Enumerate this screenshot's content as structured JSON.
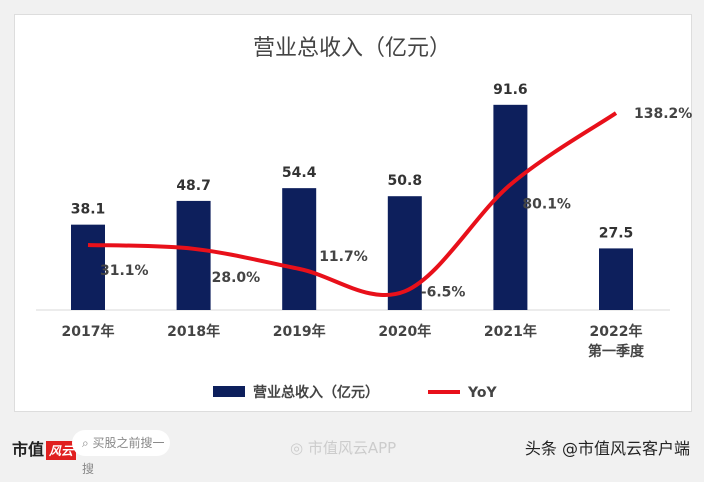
{
  "chart_data": {
    "type": "bar+line",
    "title": "营业总收入（亿元）",
    "categories": [
      "2017年",
      "2018年",
      "2019年",
      "2020年",
      "2021年",
      "2022年\n第一季度"
    ],
    "series": [
      {
        "name": "营业总收入（亿元）",
        "type": "bar",
        "color": "#0d1f5c",
        "values": [
          38.1,
          48.7,
          54.4,
          50.8,
          91.6,
          27.5
        ],
        "labels": [
          "38.1",
          "48.7",
          "54.4",
          "50.8",
          "91.6",
          "27.5"
        ]
      },
      {
        "name": "YoY",
        "type": "line",
        "color": "#e8101a",
        "axis": "secondary",
        "values": [
          31.1,
          28.0,
          11.7,
          -6.5,
          80.1,
          138.2
        ],
        "labels": [
          "31.1%",
          "28.0%",
          "11.7%",
          "-6.5%",
          "80.1%",
          "138.2%"
        ]
      }
    ],
    "legend": "bottom",
    "grid": false
  },
  "footer": {
    "logo": "市值",
    "logo_mark": "风云",
    "search_placeholder": "买股之前搜一搜",
    "weibo": "市值风云APP",
    "toutiao": "头条 @市值风云客户端"
  }
}
